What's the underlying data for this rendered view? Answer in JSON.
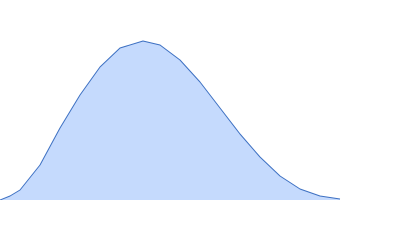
{
  "chart_data": {
    "type": "area",
    "x": [
      0,
      2.5,
      5,
      10,
      15,
      20,
      25,
      30,
      35.75,
      40,
      45,
      50,
      55,
      60,
      65,
      70,
      75,
      80,
      85
    ],
    "values": [
      0,
      2,
      5,
      17.5,
      36,
      52.5,
      66.5,
      76,
      79.5,
      77.5,
      70,
      59,
      46,
      33,
      21.5,
      12,
      5.5,
      2,
      0.5
    ],
    "color": "#c5dafd",
    "line_color": "#3d70c2",
    "xlim": [
      0,
      100
    ],
    "ylim": [
      0,
      100
    ]
  }
}
